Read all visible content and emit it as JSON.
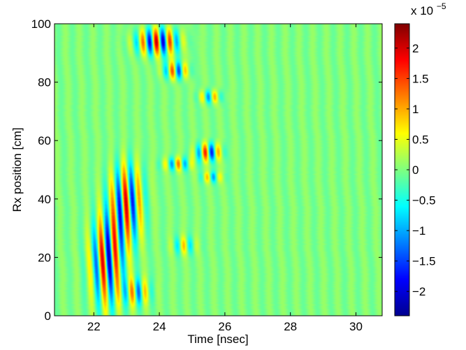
{
  "chart_data": {
    "type": "heatmap",
    "title": "",
    "xlabel": "Time [nsec]",
    "ylabel": "Rx position [cm]",
    "xlim": [
      20.8,
      30.8
    ],
    "ylim": [
      0,
      100
    ],
    "x_ticks": [
      22,
      24,
      26,
      28,
      30
    ],
    "x_tick_labels": [
      "22",
      "24",
      "26",
      "28",
      "30"
    ],
    "y_ticks": [
      0,
      20,
      40,
      60,
      80,
      100
    ],
    "y_tick_labels": [
      "0",
      "20",
      "40",
      "60",
      "80",
      "100"
    ],
    "colorbar": {
      "colormap": "jet",
      "clim": [
        -2.4e-05,
        2.4e-05
      ],
      "multiplier_text": "x 10",
      "multiplier_exponent": "−5",
      "ticks": [
        2,
        1.5,
        1,
        0.5,
        0,
        -0.5,
        -1,
        -1.5,
        -2
      ],
      "tick_labels": [
        "2",
        "1.5",
        "1",
        "0.5",
        "0",
        "−0.5",
        "−1",
        "−1.5",
        "−2"
      ]
    },
    "background_value": 0,
    "wave_period_nsec": 0.42,
    "features": [
      {
        "name": "main arrival (lower)",
        "t_start": 21.8,
        "t_end": 23.0,
        "y_start": 0,
        "y_end": 38,
        "amplitude": 2e-05
      },
      {
        "name": "main arrival (middle)",
        "t_start": 22.4,
        "t_end": 23.6,
        "y_start": 22,
        "y_end": 55,
        "amplitude": 1.9e-05
      },
      {
        "name": "top arrival",
        "t_start": 23.1,
        "t_end": 24.8,
        "y_start": 88,
        "y_end": 100,
        "amplitude": 2.2e-05
      },
      {
        "name": "patch near 24.5 ns, 84 cm",
        "t_start": 24.0,
        "t_end": 25.0,
        "y_start": 80,
        "y_end": 88,
        "amplitude": 1.6e-05
      },
      {
        "name": "patch near 25.6 ns, 57 cm",
        "t_start": 25.0,
        "t_end": 26.0,
        "y_start": 52,
        "y_end": 60,
        "amplitude": 1.8e-05
      },
      {
        "name": "patch near 25.5 ns, 75 cm",
        "t_start": 25.1,
        "t_end": 26.0,
        "y_start": 72,
        "y_end": 78,
        "amplitude": 1.2e-05
      },
      {
        "name": "patch near 24.6 ns, 52 cm",
        "t_start": 24.0,
        "t_end": 25.1,
        "y_start": 49,
        "y_end": 55,
        "amplitude": 1.2e-05
      },
      {
        "name": "patch near 25.5 ns, 48 cm",
        "t_start": 25.2,
        "t_end": 26.0,
        "y_start": 45,
        "y_end": 50,
        "amplitude": 1e-05
      },
      {
        "name": "patch near 24.8 ns, 24 cm",
        "t_start": 24.3,
        "t_end": 25.2,
        "y_start": 20,
        "y_end": 28,
        "amplitude": 8e-06
      },
      {
        "name": "patch near 23.5 ns, 8 cm",
        "t_start": 22.8,
        "t_end": 23.8,
        "y_start": 2,
        "y_end": 14,
        "amplitude": 1.2e-05
      }
    ]
  }
}
